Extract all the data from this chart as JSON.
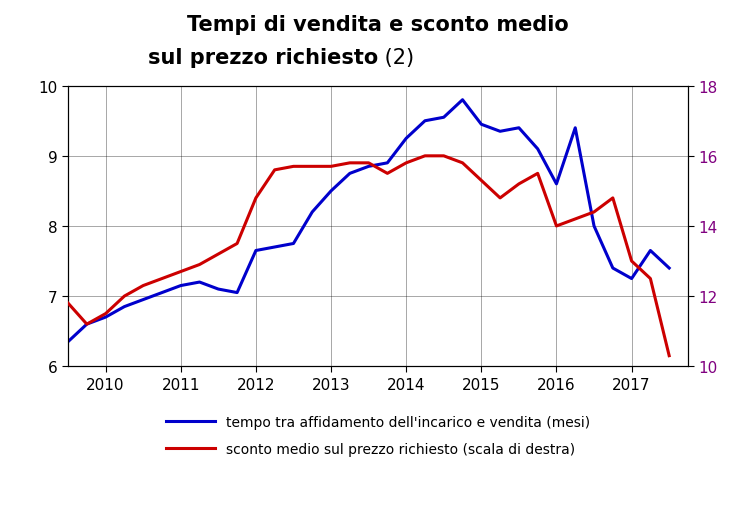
{
  "title_line1": "Tempi di vendita e sconto medio",
  "title_line2_bold": "sul prezzo richiesto",
  "title_line2_normal": " (2)",
  "blue_label": "tempo tra affidamento dell'incarico e vendita (mesi)",
  "red_label": "sconto medio sul prezzo richiesto (scala di destra)",
  "blue_color": "#0000CC",
  "red_color": "#CC0000",
  "right_tick_color": "#800080",
  "ylim_left": [
    6,
    10
  ],
  "ylim_right": [
    10,
    18
  ],
  "yticks_left": [
    6,
    7,
    8,
    9,
    10
  ],
  "yticks_right": [
    10,
    12,
    14,
    16,
    18
  ],
  "blue_x": [
    2009.5,
    2009.75,
    2010.0,
    2010.25,
    2010.5,
    2010.75,
    2011.0,
    2011.25,
    2011.5,
    2011.75,
    2012.0,
    2012.25,
    2012.5,
    2012.75,
    2013.0,
    2013.25,
    2013.5,
    2013.75,
    2014.0,
    2014.25,
    2014.5,
    2014.75,
    2015.0,
    2015.25,
    2015.5,
    2015.75,
    2016.0,
    2016.25,
    2016.5,
    2016.75,
    2017.0,
    2017.25,
    2017.5
  ],
  "blue_y": [
    6.35,
    6.6,
    6.7,
    6.85,
    6.95,
    7.05,
    7.15,
    7.2,
    7.1,
    7.05,
    7.65,
    7.7,
    7.75,
    8.2,
    8.5,
    8.75,
    8.85,
    8.9,
    9.25,
    9.5,
    9.55,
    9.8,
    9.45,
    9.35,
    9.4,
    9.1,
    8.6,
    9.4,
    8.0,
    7.4,
    7.25,
    7.65,
    7.4
  ],
  "red_x": [
    2009.5,
    2009.75,
    2010.0,
    2010.25,
    2010.5,
    2010.75,
    2011.0,
    2011.25,
    2011.5,
    2011.75,
    2012.0,
    2012.25,
    2012.5,
    2012.75,
    2013.0,
    2013.25,
    2013.5,
    2013.75,
    2014.0,
    2014.25,
    2014.5,
    2014.75,
    2015.0,
    2015.25,
    2015.5,
    2015.75,
    2016.0,
    2016.25,
    2016.5,
    2016.75,
    2017.0,
    2017.25,
    2017.5
  ],
  "red_y": [
    11.8,
    11.2,
    11.5,
    12.0,
    12.3,
    12.5,
    12.7,
    12.9,
    13.2,
    13.5,
    14.8,
    15.6,
    15.7,
    15.7,
    15.7,
    15.8,
    15.8,
    15.5,
    15.8,
    16.0,
    16.0,
    15.8,
    15.3,
    14.8,
    15.2,
    15.5,
    14.0,
    14.2,
    14.4,
    14.8,
    13.0,
    12.5,
    10.3
  ],
  "xlim": [
    2009.5,
    2017.75
  ],
  "xticks": [
    2010,
    2011,
    2012,
    2013,
    2014,
    2015,
    2016,
    2017
  ],
  "xticklabels": [
    "2010",
    "2011",
    "2012",
    "2013",
    "2014",
    "2015",
    "2016",
    "2017"
  ],
  "grid_color": "#000000",
  "linewidth": 2.2,
  "title_fontsize": 15,
  "tick_fontsize": 11
}
